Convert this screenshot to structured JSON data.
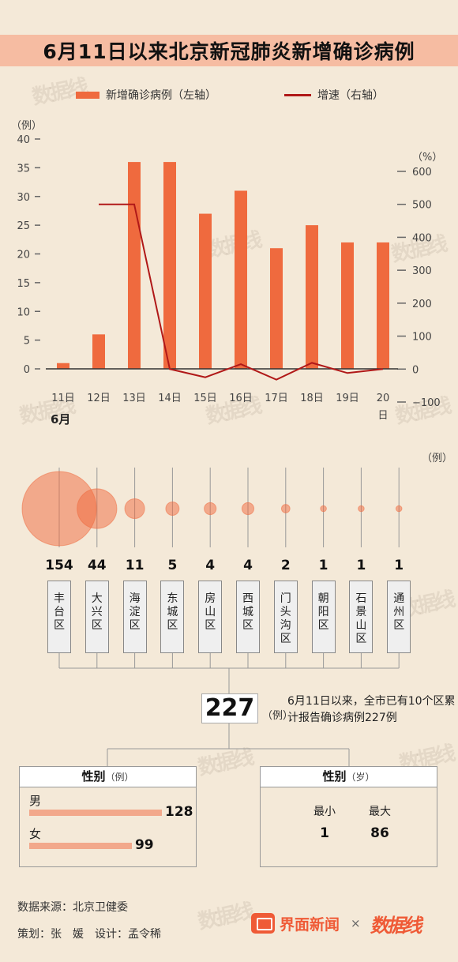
{
  "title": "6月11日以来北京新冠肺炎新增确诊病例",
  "legend": {
    "bar_label": "新增确诊病例（左轴）",
    "line_label": "增速（右轴）"
  },
  "colors": {
    "bar": "#ef6a3e",
    "line": "#b01818",
    "bubble": "#ef6a3e",
    "title_band": "#f6bca2",
    "background": "#f4e9d8"
  },
  "chart_data": [
    {
      "type": "bar+line",
      "categories": [
        "11日",
        "12日",
        "13日",
        "14日",
        "15日",
        "16日",
        "17日",
        "18日",
        "19日",
        "20日"
      ],
      "month_label": "6月",
      "series": [
        {
          "name": "新增确诊病例（左轴）",
          "type": "bar",
          "axis": "left",
          "values": [
            1,
            6,
            36,
            36,
            27,
            31,
            21,
            25,
            22,
            22
          ]
        },
        {
          "name": "增速（右轴）",
          "type": "line",
          "axis": "right",
          "values": [
            null,
            500,
            500,
            0,
            -25,
            15,
            -32,
            19,
            -12,
            0
          ]
        }
      ],
      "left_axis": {
        "unit": "（例）",
        "range": [
          0,
          40
        ],
        "ticks": [
          0,
          5,
          10,
          15,
          20,
          25,
          30,
          35,
          40
        ]
      },
      "right_axis": {
        "unit": "（%）",
        "range": [
          -100,
          600
        ],
        "ticks": [
          -100,
          0,
          100,
          200,
          300,
          400,
          500,
          600
        ]
      },
      "grid": false,
      "legend_position": "top"
    },
    {
      "type": "bubble",
      "unit": "（例）",
      "categories": [
        "丰台区",
        "大兴区",
        "海淀区",
        "东城区",
        "房山区",
        "西城区",
        "门头沟区",
        "朝阳区",
        "石景山区",
        "通州区"
      ],
      "values": [
        154,
        44,
        11,
        5,
        4,
        4,
        2,
        1,
        1,
        1
      ]
    }
  ],
  "total": {
    "value": "227",
    "unit": "（例）",
    "description": "6月11日以来，全市已有10个区累计报告确诊病例227例"
  },
  "gender": {
    "title": "性别",
    "unit": "（例）",
    "items": [
      {
        "label": "男",
        "value": 128
      },
      {
        "label": "女",
        "value": 99
      }
    ]
  },
  "age": {
    "title": "性别",
    "unit": "（岁）",
    "min_label": "最小",
    "max_label": "最大",
    "min": "1",
    "max": "86"
  },
  "footer": {
    "source": "数据来源：北京卫健委",
    "credits": "策划：张　媛　设计：孟令稀"
  },
  "brand": {
    "name": "界面新闻",
    "separator": "×",
    "partner": "数据线"
  }
}
